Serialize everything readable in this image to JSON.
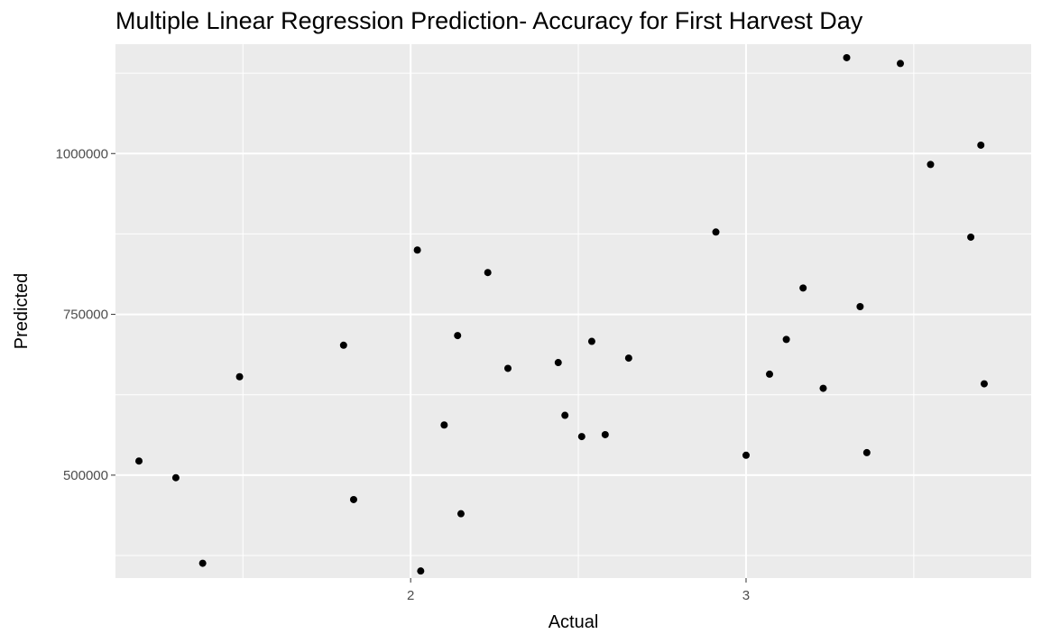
{
  "chart_data": {
    "type": "scatter",
    "title": "Multiple Linear Regression Prediction- Accuracy for First Harvest Day",
    "xlabel": "Actual",
    "ylabel": "Predicted",
    "xlim": [
      1.12,
      3.85
    ],
    "ylim": [
      340000,
      1170000
    ],
    "x_major_ticks": [
      2,
      3
    ],
    "x_minor_ticks": [
      1.5,
      2.5,
      3.5
    ],
    "y_major_ticks": [
      500000,
      750000,
      1000000
    ],
    "y_minor_ticks": [
      375000,
      625000,
      875000,
      1125000
    ],
    "x_tick_labels": [
      "2",
      "3"
    ],
    "y_tick_labels": [
      "500000",
      "750000",
      "1000000"
    ],
    "grid": true,
    "legend": "none",
    "colors": {
      "panel": "#ebebeb",
      "grid": "#ffffff",
      "point": "#000000",
      "tick_text": "#4d4d4d"
    },
    "points": [
      {
        "x": 1.19,
        "y": 522000
      },
      {
        "x": 1.3,
        "y": 496000
      },
      {
        "x": 1.38,
        "y": 363000
      },
      {
        "x": 1.49,
        "y": 653000
      },
      {
        "x": 1.8,
        "y": 702000
      },
      {
        "x": 1.83,
        "y": 462000
      },
      {
        "x": 2.02,
        "y": 850000
      },
      {
        "x": 2.03,
        "y": 351000
      },
      {
        "x": 2.1,
        "y": 578000
      },
      {
        "x": 2.14,
        "y": 717000
      },
      {
        "x": 2.15,
        "y": 440000
      },
      {
        "x": 2.23,
        "y": 815000
      },
      {
        "x": 2.29,
        "y": 666000
      },
      {
        "x": 2.44,
        "y": 675000
      },
      {
        "x": 2.46,
        "y": 593000
      },
      {
        "x": 2.51,
        "y": 560000
      },
      {
        "x": 2.54,
        "y": 708000
      },
      {
        "x": 2.58,
        "y": 563000
      },
      {
        "x": 2.65,
        "y": 682000
      },
      {
        "x": 2.91,
        "y": 878000
      },
      {
        "x": 3.0,
        "y": 531000
      },
      {
        "x": 3.07,
        "y": 657000
      },
      {
        "x": 3.12,
        "y": 711000
      },
      {
        "x": 3.17,
        "y": 791000
      },
      {
        "x": 3.23,
        "y": 635000
      },
      {
        "x": 3.3,
        "y": 1149000
      },
      {
        "x": 3.34,
        "y": 762000
      },
      {
        "x": 3.36,
        "y": 535000
      },
      {
        "x": 3.46,
        "y": 1140000
      },
      {
        "x": 3.55,
        "y": 983000
      },
      {
        "x": 3.67,
        "y": 870000
      },
      {
        "x": 3.7,
        "y": 1013000
      },
      {
        "x": 3.71,
        "y": 642000
      }
    ]
  }
}
